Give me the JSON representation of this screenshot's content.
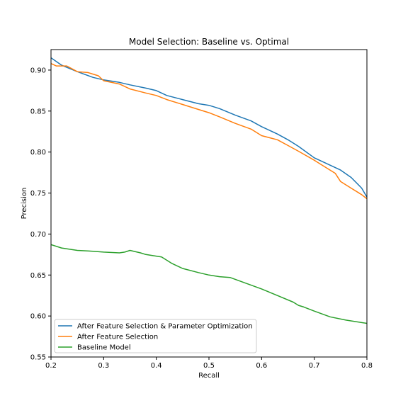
{
  "chart_data": {
    "type": "line",
    "title": "Model Selection: Baseline vs. Optimal",
    "xlabel": "Recall",
    "ylabel": "Precision",
    "xlim": [
      0.2,
      0.8
    ],
    "ylim": [
      0.55,
      0.925
    ],
    "xticks": [
      "0.2",
      "0.3",
      "0.4",
      "0.5",
      "0.6",
      "0.7",
      "0.8"
    ],
    "yticks": [
      "0.55",
      "0.60",
      "0.65",
      "0.70",
      "0.75",
      "0.80",
      "0.85",
      "0.90"
    ],
    "grid": false,
    "legend_position": "lower-left",
    "series": [
      {
        "name": "After Feature Selection & Parameter Optimization",
        "color": "#1f77b4",
        "x": [
          0.2,
          0.22,
          0.25,
          0.28,
          0.3,
          0.33,
          0.35,
          0.38,
          0.4,
          0.42,
          0.45,
          0.48,
          0.5,
          0.52,
          0.55,
          0.58,
          0.6,
          0.63,
          0.65,
          0.67,
          0.7,
          0.72,
          0.75,
          0.77,
          0.79,
          0.8
        ],
        "y": [
          0.915,
          0.906,
          0.898,
          0.891,
          0.888,
          0.885,
          0.882,
          0.878,
          0.875,
          0.869,
          0.864,
          0.859,
          0.857,
          0.853,
          0.845,
          0.838,
          0.831,
          0.822,
          0.815,
          0.807,
          0.793,
          0.787,
          0.778,
          0.769,
          0.756,
          0.745
        ]
      },
      {
        "name": "After Feature Selection",
        "color": "#ff7f0e",
        "x": [
          0.2,
          0.21,
          0.23,
          0.25,
          0.27,
          0.29,
          0.3,
          0.33,
          0.35,
          0.38,
          0.4,
          0.42,
          0.45,
          0.48,
          0.5,
          0.52,
          0.55,
          0.58,
          0.6,
          0.63,
          0.65,
          0.67,
          0.7,
          0.72,
          0.74,
          0.75,
          0.77,
          0.79,
          0.8
        ],
        "y": [
          0.908,
          0.905,
          0.905,
          0.898,
          0.897,
          0.893,
          0.887,
          0.883,
          0.877,
          0.872,
          0.869,
          0.864,
          0.858,
          0.852,
          0.848,
          0.843,
          0.835,
          0.828,
          0.82,
          0.815,
          0.808,
          0.801,
          0.79,
          0.782,
          0.774,
          0.764,
          0.756,
          0.748,
          0.743
        ]
      },
      {
        "name": "Baseline Model",
        "color": "#2ca02c",
        "x": [
          0.2,
          0.22,
          0.25,
          0.28,
          0.3,
          0.33,
          0.34,
          0.35,
          0.37,
          0.38,
          0.4,
          0.41,
          0.43,
          0.45,
          0.48,
          0.5,
          0.52,
          0.54,
          0.57,
          0.6,
          0.63,
          0.66,
          0.67,
          0.68,
          0.7,
          0.73,
          0.76,
          0.8
        ],
        "y": [
          0.687,
          0.683,
          0.68,
          0.679,
          0.678,
          0.677,
          0.678,
          0.68,
          0.677,
          0.675,
          0.673,
          0.672,
          0.664,
          0.658,
          0.653,
          0.65,
          0.648,
          0.647,
          0.64,
          0.633,
          0.625,
          0.617,
          0.613,
          0.611,
          0.606,
          0.599,
          0.595,
          0.591
        ]
      }
    ]
  }
}
